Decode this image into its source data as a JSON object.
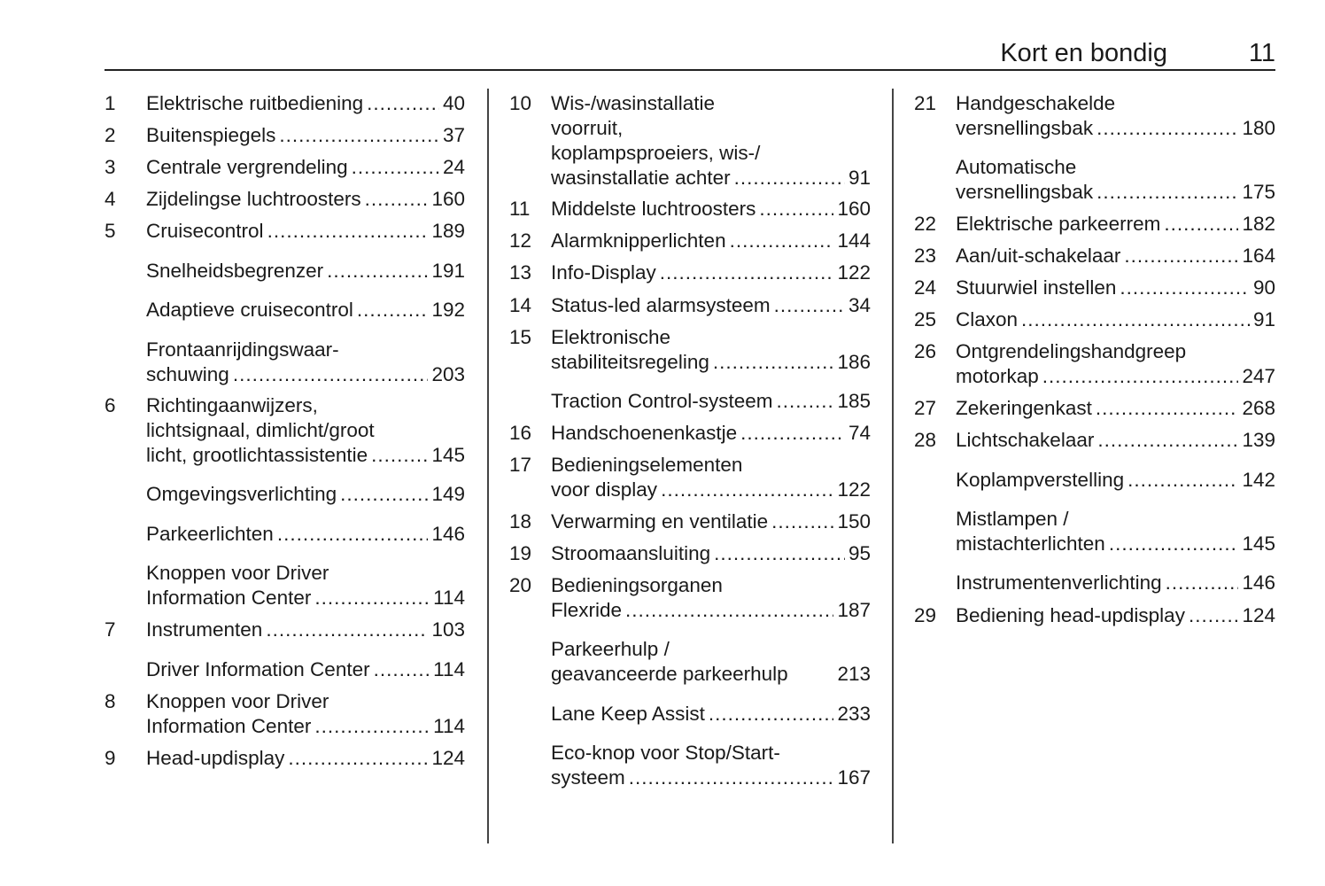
{
  "header": {
    "title": "Kort en bondig",
    "page_number": "11"
  },
  "columns": [
    [
      {
        "num": "1",
        "lines": [
          "Elektrische ruitbediening"
        ],
        "page": "40"
      },
      {
        "num": "2",
        "lines": [
          "Buitenspiegels"
        ],
        "page": "37"
      },
      {
        "num": "3",
        "lines": [
          "Centrale vergrendeling"
        ],
        "page": "24"
      },
      {
        "num": "4",
        "lines": [
          "Zijdelingse luchtroosters"
        ],
        "page": "160"
      },
      {
        "num": "5",
        "lines": [
          "Cruisecontrol"
        ],
        "page": "189"
      },
      {
        "num": "",
        "lines": [
          "Snelheidsbegrenzer"
        ],
        "page": "191"
      },
      {
        "num": "",
        "lines": [
          "Adaptieve cruisecontrol"
        ],
        "page": "192"
      },
      {
        "num": "",
        "lines": [
          "Frontaanrijdingswaar-",
          "schuwing"
        ],
        "page": "203"
      },
      {
        "num": "6",
        "lines": [
          "Richtingaanwijzers,",
          "lichtsignaal, dimlicht/groot",
          "licht, grootlichtassistentie"
        ],
        "page": "145"
      },
      {
        "num": "",
        "lines": [
          "Omgevingsverlichting"
        ],
        "page": "149"
      },
      {
        "num": "",
        "lines": [
          "Parkeerlichten"
        ],
        "page": "146"
      },
      {
        "num": "",
        "lines": [
          "Knoppen voor Driver",
          "Information Center"
        ],
        "page": "114"
      },
      {
        "num": "7",
        "lines": [
          "Instrumenten"
        ],
        "page": "103"
      },
      {
        "num": "",
        "lines": [
          "Driver Information Center"
        ],
        "page": "114"
      },
      {
        "num": "8",
        "lines": [
          "Knoppen voor Driver",
          "Information Center"
        ],
        "page": "114"
      },
      {
        "num": "9",
        "lines": [
          "Head-updisplay"
        ],
        "page": "124"
      }
    ],
    [
      {
        "num": "10",
        "lines": [
          "Wis-/wasinstallatie",
          "voorruit,",
          "koplampsproeiers, wis-/",
          "wasinstallatie achter"
        ],
        "page": "91"
      },
      {
        "num": "11",
        "lines": [
          "Middelste luchtroosters"
        ],
        "page": "160"
      },
      {
        "num": "12",
        "lines": [
          "Alarmknipperlichten"
        ],
        "page": "144"
      },
      {
        "num": "13",
        "lines": [
          "Info-Display"
        ],
        "page": "122"
      },
      {
        "num": "14",
        "lines": [
          "Status-led alarmsysteem"
        ],
        "page": "34"
      },
      {
        "num": "15",
        "lines": [
          "Elektronische",
          "stabiliteitsregeling"
        ],
        "page": "186"
      },
      {
        "num": "",
        "lines": [
          "Traction Control-systeem"
        ],
        "page": "185"
      },
      {
        "num": "16",
        "lines": [
          "Handschoenenkastje"
        ],
        "page": "74"
      },
      {
        "num": "17",
        "lines": [
          "Bedieningselementen",
          "voor display"
        ],
        "page": "122"
      },
      {
        "num": "18",
        "lines": [
          "Verwarming en ventilatie"
        ],
        "page": "150"
      },
      {
        "num": "19",
        "lines": [
          "Stroomaansluiting"
        ],
        "page": "95"
      },
      {
        "num": "20",
        "lines": [
          "Bedieningsorganen",
          "Flexride"
        ],
        "page": "187"
      },
      {
        "num": "",
        "lines": [
          "Parkeerhulp /",
          "geavanceerde parkeerhulp"
        ],
        "page": "213"
      },
      {
        "num": "",
        "lines": [
          "Lane Keep Assist"
        ],
        "page": "233"
      },
      {
        "num": "",
        "lines": [
          "Eco-knop voor Stop/Start-",
          "systeem"
        ],
        "page": "167"
      }
    ],
    [
      {
        "num": "21",
        "lines": [
          "Handgeschakelde",
          "versnellingsbak"
        ],
        "page": "180"
      },
      {
        "num": "",
        "lines": [
          "Automatische",
          "versnellingsbak"
        ],
        "page": "175"
      },
      {
        "num": "22",
        "lines": [
          "Elektrische parkeerrem"
        ],
        "page": "182"
      },
      {
        "num": "23",
        "lines": [
          "Aan/uit-schakelaar"
        ],
        "page": "164"
      },
      {
        "num": "24",
        "lines": [
          "Stuurwiel instellen"
        ],
        "page": "90"
      },
      {
        "num": "25",
        "lines": [
          "Claxon"
        ],
        "page": "91"
      },
      {
        "num": "26",
        "lines": [
          "Ontgrendelingshandgreep",
          "motorkap"
        ],
        "page": "247"
      },
      {
        "num": "27",
        "lines": [
          "Zekeringenkast"
        ],
        "page": "268"
      },
      {
        "num": "28",
        "lines": [
          "Lichtschakelaar"
        ],
        "page": "139"
      },
      {
        "num": "",
        "lines": [
          "Koplampverstelling"
        ],
        "page": "142"
      },
      {
        "num": "",
        "lines": [
          "Mistlampen /",
          "mistachterlichten"
        ],
        "page": "145"
      },
      {
        "num": "",
        "lines": [
          "Instrumentenverlichting"
        ],
        "page": "146"
      },
      {
        "num": "29",
        "lines": [
          "Bediening head-updisplay"
        ],
        "page": "124"
      }
    ]
  ]
}
